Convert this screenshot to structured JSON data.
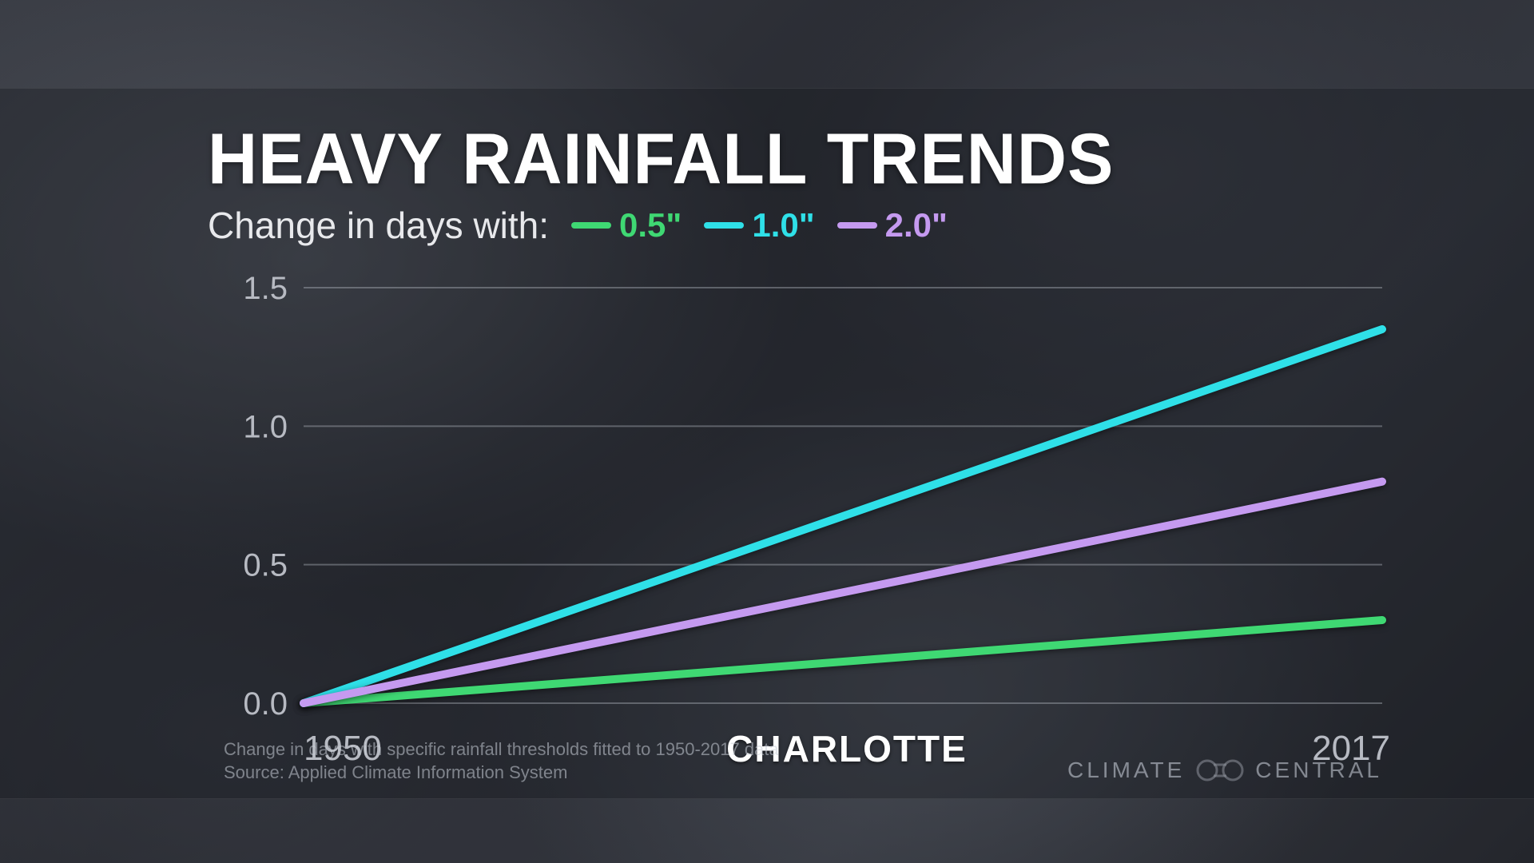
{
  "title": "HEAVY RAINFALL TRENDS",
  "subtitle": "Change in days with:",
  "legend": [
    {
      "label": "0.5\"",
      "color": "#3fd873"
    },
    {
      "label": "1.0\"",
      "color": "#2fe0e8"
    },
    {
      "label": "2.0\"",
      "color": "#c59af0"
    }
  ],
  "chart": {
    "type": "line",
    "xlim": [
      1950,
      2017
    ],
    "ylim": [
      0.0,
      1.5
    ],
    "yticks": [
      0.0,
      0.5,
      1.0,
      1.5
    ],
    "ytick_labels": [
      "0.0",
      "0.5",
      "1.0",
      "1.5"
    ],
    "gridline_color": "rgba(200,205,215,0.35)",
    "gridline_width": 2,
    "background": "transparent",
    "series": [
      {
        "name": "0.5in",
        "color": "#3fd873",
        "width": 10,
        "points": [
          [
            1950,
            0.0
          ],
          [
            2017,
            0.3
          ]
        ]
      },
      {
        "name": "1.0in",
        "color": "#2fe0e8",
        "width": 10,
        "points": [
          [
            1950,
            0.0
          ],
          [
            2017,
            1.35
          ]
        ]
      },
      {
        "name": "2.0in",
        "color": "#c59af0",
        "width": 10,
        "points": [
          [
            1950,
            0.0
          ],
          [
            2017,
            0.8
          ]
        ]
      }
    ],
    "label_fontsize": 40,
    "label_color": "#b7bac2"
  },
  "xaxis": {
    "start": "1950",
    "end": "2017"
  },
  "location": "CHARLOTTE",
  "footnote_line1": "Change in days with specific rainfall thresholds fitted to 1950-2017 data",
  "footnote_line2": "Source: Applied Climate Information System",
  "brand_left": "CLIMATE",
  "brand_right": "CENTRAL",
  "colors": {
    "title": "#ffffff",
    "subtitle": "#e8e9ec",
    "axis_label": "#b7bac2",
    "footnote": "rgba(200,205,215,0.55)",
    "panel_bg": "rgba(20,22,28,0.35)"
  },
  "typography": {
    "title_fontsize": 86,
    "title_weight": 800,
    "subtitle_fontsize": 46,
    "legend_fontsize": 42,
    "xtick_fontsize": 44,
    "location_fontsize": 46,
    "footnote_fontsize": 22,
    "brand_fontsize": 28
  }
}
